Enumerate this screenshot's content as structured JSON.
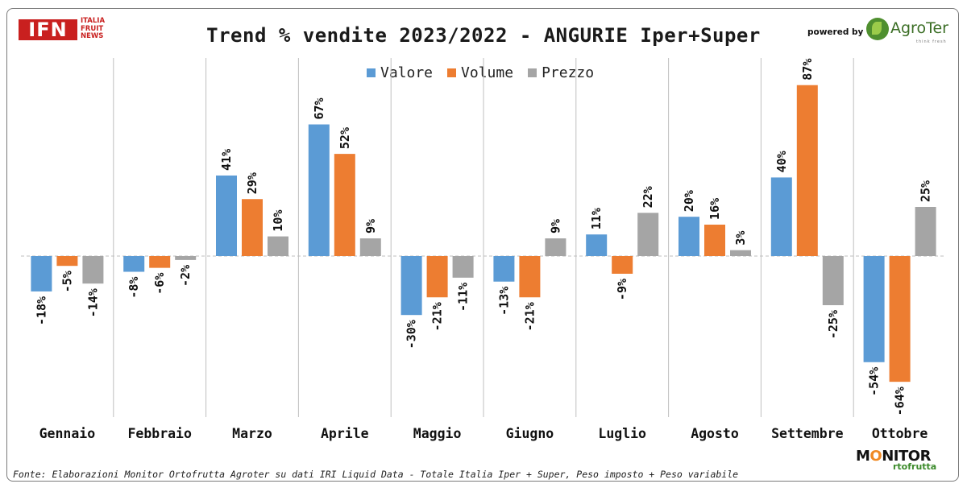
{
  "header": {
    "title": "Trend % vendite 2023/2022 - ANGURIE Iper+Super",
    "logo_text": "IFN",
    "logo_subtitle": [
      "ITALIA",
      "FRUIT",
      "NEWS"
    ],
    "powered_by": "powered by",
    "sponsor_name": "AgroTer",
    "sponsor_tagline": "think fresh"
  },
  "footer": {
    "source": "Fonte: Elaborazioni Monitor Ortofrutta Agroter su dati IRI Liquid Data - Totale Italia Iper + Super, Peso imposto + Peso variabile",
    "monitor_logo_prefix": "M",
    "monitor_logo_o": "O",
    "monitor_logo_rest": "NITOR",
    "monitor_logo_sub": "rtofrutta"
  },
  "colors": {
    "valore": "#5b9bd5",
    "volume": "#ed7d31",
    "prezzo": "#a5a5a5",
    "gridline": "#bfbfbf",
    "zero_line": "#bfbfbf"
  },
  "chart_data": {
    "type": "bar",
    "title": "Trend % vendite 2023/2022 - ANGURIE Iper+Super",
    "xlabel": "",
    "ylabel": "",
    "unit": "%",
    "ylim": [
      -72,
      92
    ],
    "legend_position": "top-center",
    "categories": [
      "Gennaio",
      "Febbraio",
      "Marzo",
      "Aprile",
      "Maggio",
      "Giugno",
      "Luglio",
      "Agosto",
      "Settembre",
      "Ottobre"
    ],
    "series": [
      {
        "name": "Valore",
        "color": "#5b9bd5",
        "values": [
          -18,
          -8,
          41,
          67,
          -30,
          -13,
          11,
          20,
          40,
          -54
        ]
      },
      {
        "name": "Volume",
        "color": "#ed7d31",
        "values": [
          -5,
          -6,
          29,
          52,
          -21,
          -21,
          -9,
          16,
          87,
          -64
        ]
      },
      {
        "name": "Prezzo",
        "color": "#a5a5a5",
        "values": [
          -14,
          -2,
          10,
          9,
          -11,
          9,
          22,
          3,
          -25,
          25
        ]
      }
    ]
  }
}
